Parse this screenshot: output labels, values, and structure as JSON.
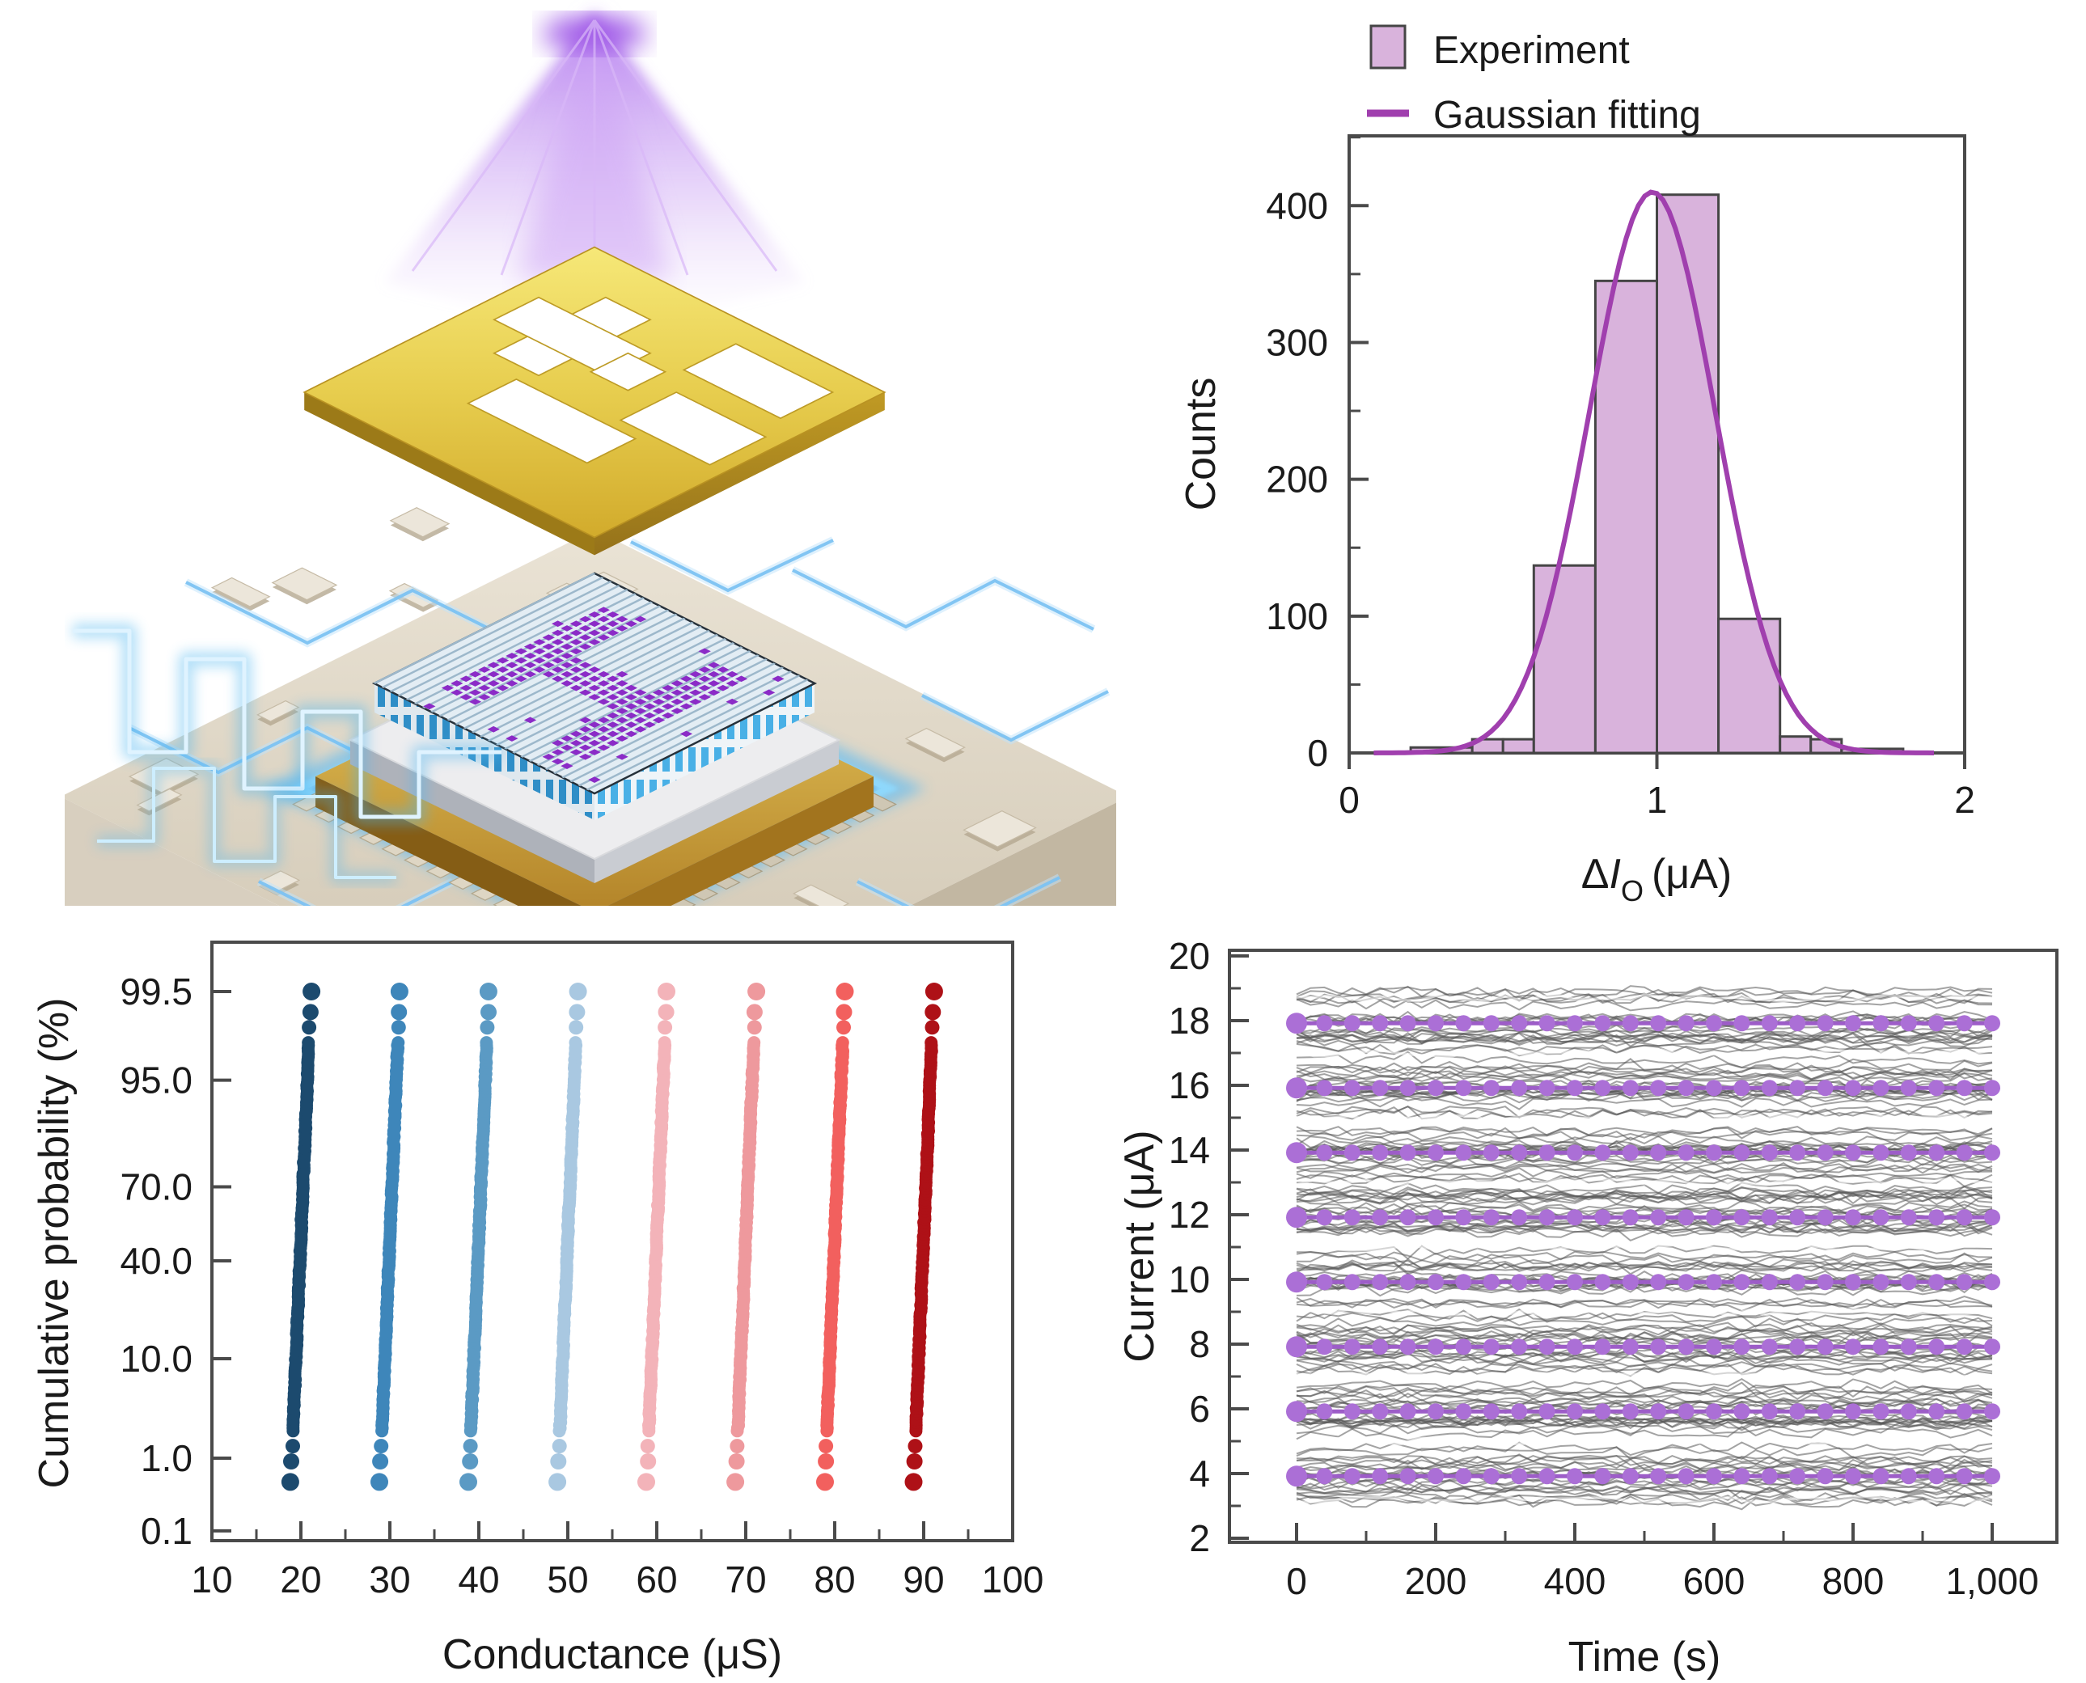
{
  "background_color": "#ffffff",
  "illustration": {
    "name": "optically-programmed memristor crossbar chip",
    "elements": [
      "light-beam",
      "shadow-mask-plate",
      "crossbar-array-chip",
      "glowing-socket-ring",
      "signal-waveform",
      "circuit-board"
    ]
  },
  "chart_data": [
    {
      "id": "output-current-histogram",
      "type": "bar",
      "legend": [
        {
          "label": "Experiment",
          "marker": "swatch"
        },
        {
          "label": "Gaussian fitting",
          "marker": "line"
        }
      ],
      "xlabel": {
        "prefix": "Δ",
        "variable": "I",
        "subscript": "O",
        "unit": "(μA)"
      },
      "ylabel": "Counts",
      "xlim": [
        0,
        2
      ],
      "ylim": [
        0,
        451
      ],
      "xticks": [
        {
          "v": 0,
          "label": "0"
        },
        {
          "v": 1,
          "label": "1"
        },
        {
          "v": 2,
          "label": "2"
        }
      ],
      "yticks": [
        {
          "v": 0,
          "label": "0"
        },
        {
          "v": 100,
          "label": "100"
        },
        {
          "v": 200,
          "label": "200"
        },
        {
          "v": 300,
          "label": "300"
        },
        {
          "v": 400,
          "label": "400"
        }
      ],
      "y_minor_step": 50,
      "grid": false,
      "bars": [
        {
          "x0": 0.2,
          "x1": 0.4,
          "count": 4
        },
        {
          "x0": 0.4,
          "x1": 0.5,
          "count": 10
        },
        {
          "x0": 0.5,
          "x1": 0.6,
          "count": 10
        },
        {
          "x0": 0.6,
          "x1": 0.8,
          "count": 137
        },
        {
          "x0": 0.8,
          "x1": 1.0,
          "count": 345
        },
        {
          "x0": 1.0,
          "x1": 1.2,
          "count": 408
        },
        {
          "x0": 1.2,
          "x1": 1.4,
          "count": 98
        },
        {
          "x0": 1.4,
          "x1": 1.5,
          "count": 12
        },
        {
          "x0": 1.5,
          "x1": 1.6,
          "count": 10
        },
        {
          "x0": 1.6,
          "x1": 1.8,
          "count": 3
        }
      ],
      "gaussian": {
        "amplitude": 410,
        "mean": 0.985,
        "sigma": 0.205
      },
      "colors": {
        "bar_fill": "#d9b3dc",
        "bar_edge": "#454545",
        "fit_line": "#a03fae"
      }
    },
    {
      "id": "conductance-cumulative-probability",
      "type": "scatter",
      "xlabel": "Conductance (μS)",
      "ylabel": "Cumulative probability (%)",
      "x_ticks": [
        {
          "v": 10,
          "label": "10"
        },
        {
          "v": 20,
          "label": "20"
        },
        {
          "v": 30,
          "label": "30"
        },
        {
          "v": 40,
          "label": "40"
        },
        {
          "v": 50,
          "label": "50"
        },
        {
          "v": 60,
          "label": "60"
        },
        {
          "v": 70,
          "label": "70"
        },
        {
          "v": 80,
          "label": "80"
        },
        {
          "v": 90,
          "label": "90"
        },
        {
          "v": 100,
          "label": "100"
        }
      ],
      "x_minor_step": 5,
      "y_scale": "probit",
      "y_ticks": [
        {
          "p": 99.5,
          "label": "99.5"
        },
        {
          "p": 95.0,
          "label": "95.0"
        },
        {
          "p": 70.0,
          "label": "70.0"
        },
        {
          "p": 40.0,
          "label": "40.0"
        },
        {
          "p": 10.0,
          "label": "10.0"
        },
        {
          "p": 1.0,
          "label": "1.0"
        },
        {
          "p": 0.1,
          "label": "0.1"
        }
      ],
      "probability_range_pct": [
        0.5,
        99.5
      ],
      "spread_uS_per_sigma": 0.44,
      "series": [
        {
          "conductance_uS": 20,
          "color": "#1c4a6e"
        },
        {
          "conductance_uS": 30,
          "color": "#3e86ba"
        },
        {
          "conductance_uS": 40,
          "color": "#5b9ac4"
        },
        {
          "conductance_uS": 50,
          "color": "#a9c8e1"
        },
        {
          "conductance_uS": 60,
          "color": "#f3b3b9"
        },
        {
          "conductance_uS": 70,
          "color": "#ee999d"
        },
        {
          "conductance_uS": 80,
          "color": "#f2605e"
        },
        {
          "conductance_uS": 90,
          "color": "#ae1117"
        }
      ]
    },
    {
      "id": "multilevel-current-retention",
      "type": "line",
      "xlabel": "Time (s)",
      "ylabel": "Current (μA)",
      "xlim": [
        -95,
        1095
      ],
      "ylim": [
        2,
        20.2
      ],
      "x_ticks": [
        {
          "v": 0,
          "label": "0"
        },
        {
          "v": 200,
          "label": "200"
        },
        {
          "v": 400,
          "label": "400"
        },
        {
          "v": 600,
          "label": "600"
        },
        {
          "v": 800,
          "label": "800"
        },
        {
          "v": 1000,
          "label": "1,000"
        }
      ],
      "x_minor_step": 100,
      "y_ticks": [
        {
          "v": 2,
          "label": "2"
        },
        {
          "v": 4,
          "label": "4"
        },
        {
          "v": 6,
          "label": "6"
        },
        {
          "v": 8,
          "label": "8"
        },
        {
          "v": 10,
          "label": "10"
        },
        {
          "v": 12,
          "label": "12"
        },
        {
          "v": 14,
          "label": "14"
        },
        {
          "v": 16,
          "label": "16"
        },
        {
          "v": 18,
          "label": "18"
        },
        {
          "v": 20,
          "label": "20"
        }
      ],
      "y_minor_step": 1,
      "time_range_s": [
        0,
        1000
      ],
      "marker_levels_uA": [
        4,
        6,
        8,
        10,
        12,
        14,
        16,
        18
      ],
      "marker_interval_s": 40,
      "gray_band_uA": [
        3.05,
        18.95
      ],
      "traces_per_level": 24,
      "colors": {
        "trace": "#575757",
        "marker": "#ab6fd6",
        "marker_line": "#9d5dc8",
        "streak": "#ffffff"
      }
    }
  ]
}
